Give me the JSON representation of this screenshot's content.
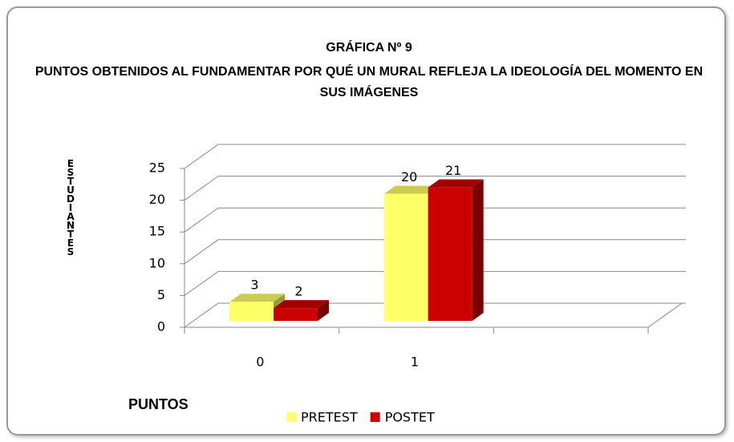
{
  "chart_data": {
    "type": "bar3d",
    "title": "GRÁFICA Nº 9",
    "subtitle": "PUNTOS  OBTENIDOS AL FUNDAMENTAR  POR QUÉ UN MURAL REFLEJA  LA IDEOLOGÍA DEL MOMENTO EN  SUS IMÁGENES",
    "ylabel": "ESTUDIANTES",
    "xlabel": "PUNTOS",
    "categories": [
      "0",
      "1",
      null
    ],
    "series": [
      {
        "name": "PRETEST",
        "color": "#ffff66",
        "values": [
          3,
          20,
          null
        ]
      },
      {
        "name": "POSTET",
        "color": "#cc0000",
        "values": [
          2,
          21,
          null
        ]
      }
    ],
    "ylim": [
      0,
      25
    ],
    "yticks": [
      0,
      5,
      10,
      15,
      20,
      25
    ],
    "grid": true,
    "legend": "bottom"
  }
}
